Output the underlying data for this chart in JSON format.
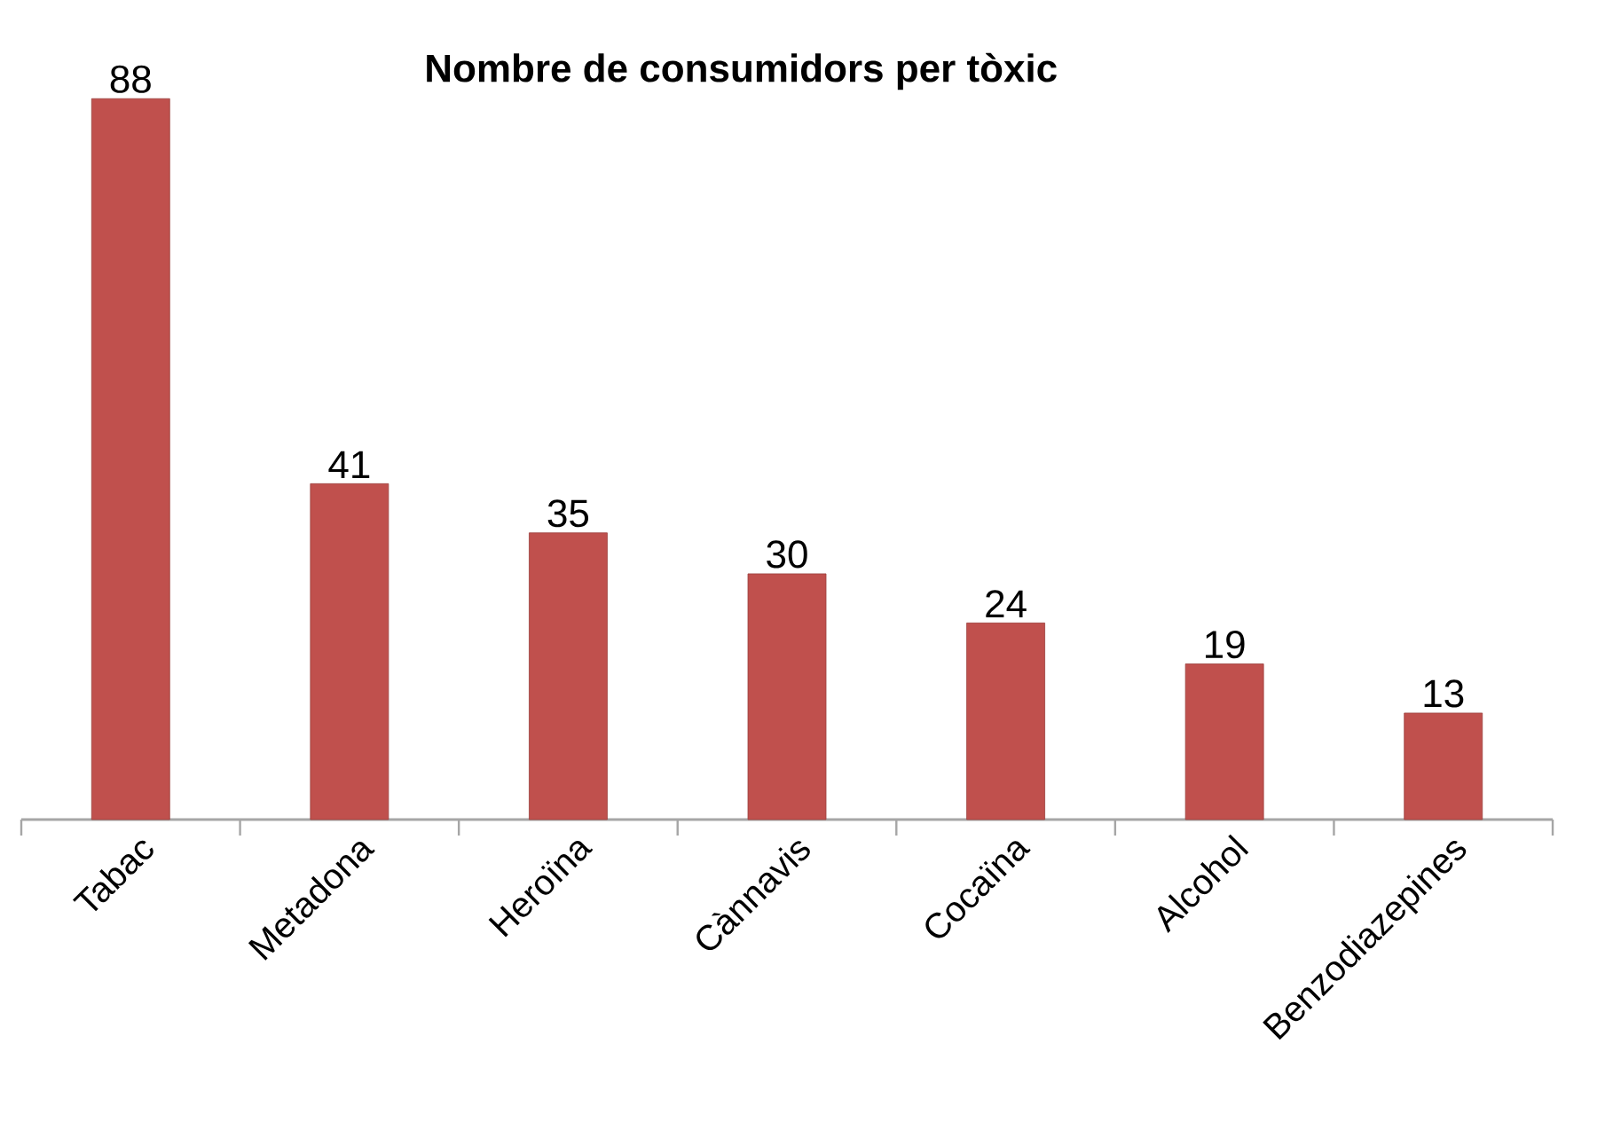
{
  "chart_data": {
    "type": "bar",
    "title": "Nombre de consumidors per tòxic",
    "categories": [
      "Tabac",
      "Metadona",
      "Heroïna",
      "Cànnavis",
      "Cocaïna",
      "Alcohol",
      "Benzodiazepines"
    ],
    "values": [
      88,
      41,
      35,
      30,
      24,
      19,
      13
    ],
    "color": "#c0504d",
    "data_labels": true
  }
}
